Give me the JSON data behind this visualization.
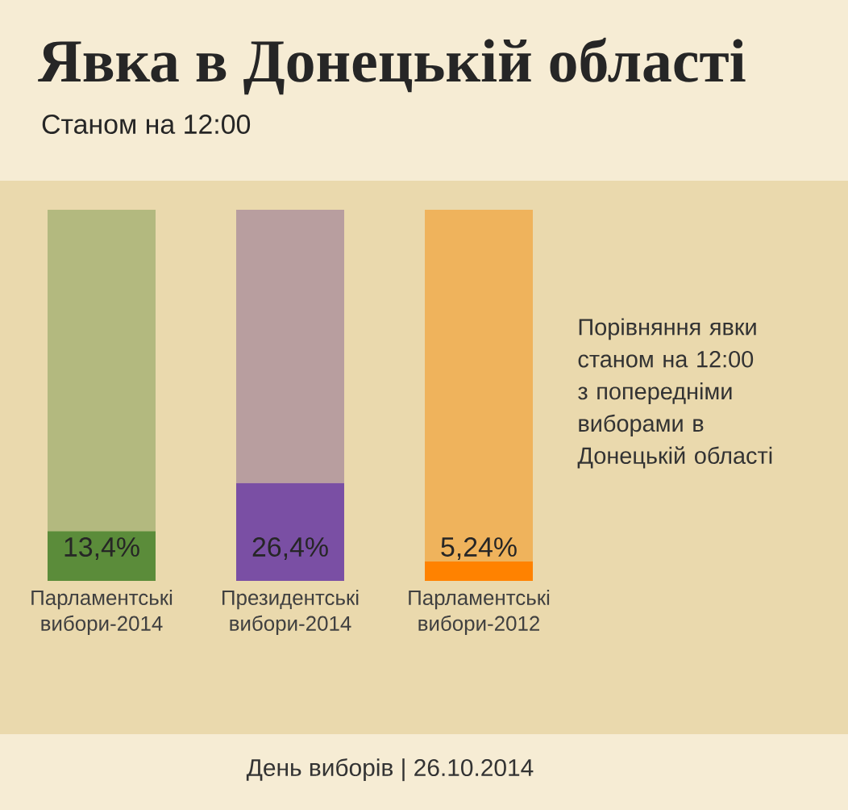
{
  "chart_data": {
    "type": "bar",
    "title": "Явка в Донецькій області",
    "subtitle": "Станом на 12:00",
    "categories": [
      "Парламентські вибори-2014",
      "Президентські вибори-2014",
      "Парламентські вибори-2012"
    ],
    "stacked": true,
    "ylim": [
      0,
      100
    ],
    "series": [
      {
        "colors": [
          "#5b8c3a",
          "#7a4fa4",
          "#ff8200"
        ],
        "values": [
          13.4,
          26.4,
          5.24
        ],
        "value_labels": [
          "13,4%",
          "26,4%",
          "5,24%"
        ]
      },
      {
        "colors": [
          "#b3b97f",
          "#b89e9f",
          "#efb35c"
        ],
        "values": [
          86.6,
          73.6,
          94.76
        ]
      }
    ],
    "annotations": [
      "Порівняння явки станом на 12:00 з попередніми виборами в Донецькій області",
      "День виборів | 26.10.2014"
    ]
  }
}
